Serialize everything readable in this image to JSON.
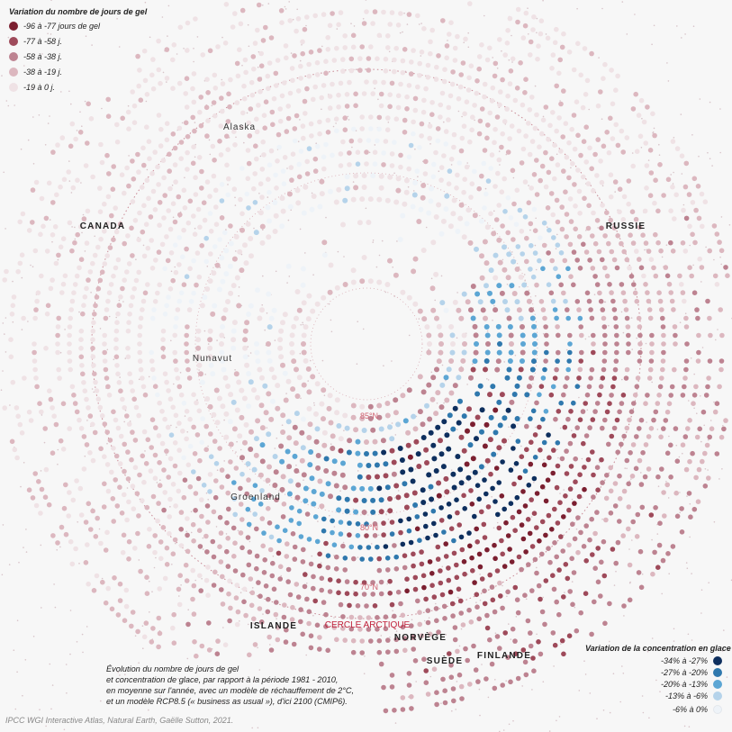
{
  "legend_gel": {
    "title": "Variation du nombre de jours de gel",
    "items": [
      {
        "label": "-96 à -77 jours de gel",
        "color": "#7b1f30"
      },
      {
        "label": "-77 à -58 j.",
        "color": "#9e4a5a"
      },
      {
        "label": "-58 à -38 j.",
        "color": "#bd8391"
      },
      {
        "label": "-38 à -19 j.",
        "color": "#dcb7bf"
      },
      {
        "label": "-19 à 0 j.",
        "color": "#efe2e5"
      }
    ]
  },
  "legend_glace": {
    "title": "Variation de la concentration en glace",
    "items": [
      {
        "label": "-34% à -27%",
        "color": "#0e2f5e"
      },
      {
        "label": "-27% à -20%",
        "color": "#2f78ad"
      },
      {
        "label": "-20% à -13%",
        "color": "#5ca6d4"
      },
      {
        "label": "-13% à -6%",
        "color": "#b5d3ea"
      },
      {
        "label": "-6% à 0%",
        "color": "#eef3f8"
      }
    ]
  },
  "places": {
    "alaska": "Alaska",
    "nunavut": "Nunavut",
    "groenland": "Groenland"
  },
  "countries": {
    "canada": "CANADA",
    "russie": "RUSSIE",
    "islande": "ISLANDE",
    "norvege": "NORVÈGE",
    "suede": "SUÈDE",
    "finlande": "FINLANDE"
  },
  "latitudes": {
    "lat85": "85°N",
    "lat80": "80°N",
    "lat70": "70°N",
    "arctic_circle": "CERCLE ARCTIQUE"
  },
  "description": [
    "Évolution du nombre de jours de gel",
    "et concentration de glace, par rapport à la période 1981 - 2010,",
    "en moyenne sur l'année, avec un modèle de réchauffement de 2°C,",
    "et un modèle RCP8.5 (« business as usual »), d'ici 2100 (CMIP6)."
  ],
  "credits": "IPCC WGI Interactive Atlas, Natural Earth, Gaëlle Sutton, 2021."
}
